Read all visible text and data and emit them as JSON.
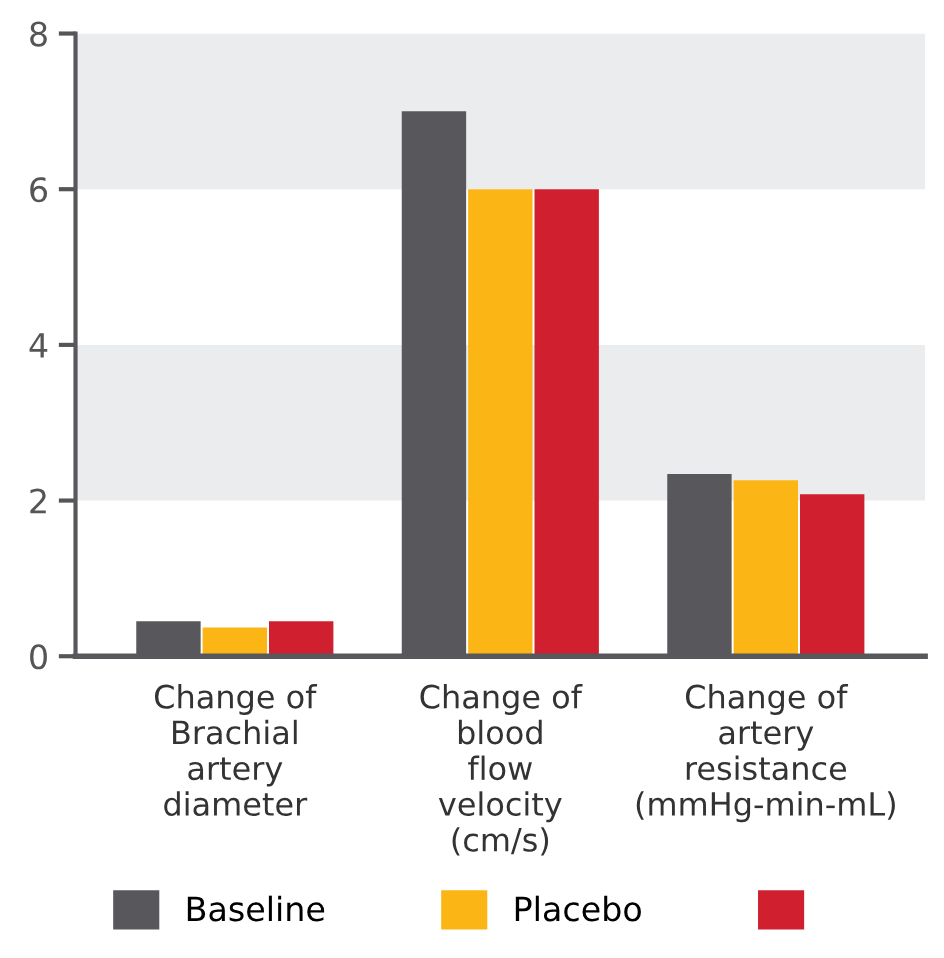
{
  "chart_data": {
    "type": "bar",
    "categories": [
      "Change of\nBrachial\nartery\ndiameter",
      "Change of\nblood\nflow\nvelocity\n(cm/s)",
      "Change of\nartery\nresistance\n(mmHg-min-mL)"
    ],
    "series": [
      {
        "name": "Baseline",
        "color": "#58585c",
        "values": [
          0.45,
          7,
          2.34
        ]
      },
      {
        "name": "Placebo",
        "color": "#fbb615",
        "values": [
          0.37,
          6,
          2.26
        ]
      },
      {
        "color": "#d01f2f",
        "values": [
          0.45,
          6,
          2.08
        ]
      }
    ],
    "ylim": [
      0,
      8
    ],
    "yticks": [
      0,
      2,
      4,
      6,
      8
    ],
    "grid": false,
    "legend": "bottom",
    "bands": [
      {
        "axis": "y",
        "from": 2,
        "to": 4,
        "color": "#ebeced"
      },
      {
        "axis": "y",
        "from": 6,
        "to": 8,
        "color": "#ebeced"
      }
    ]
  }
}
